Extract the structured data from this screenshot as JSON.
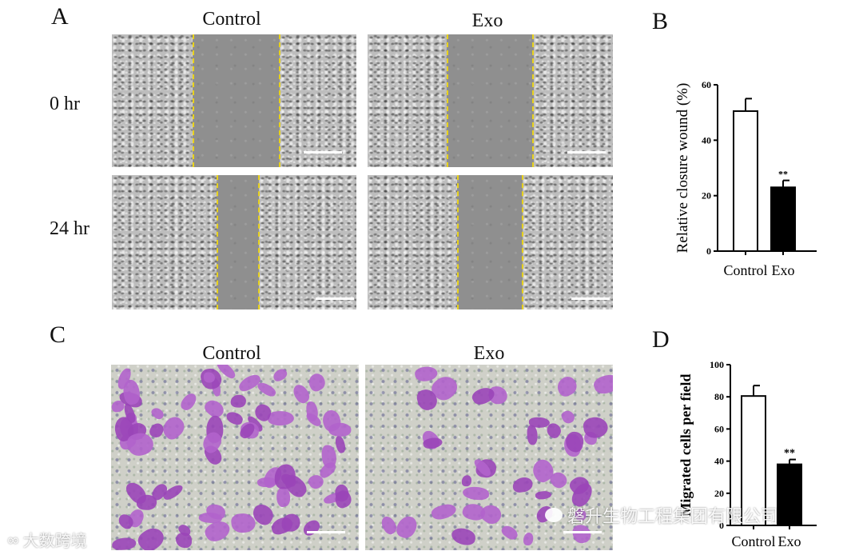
{
  "panels": {
    "a": {
      "letter": "A",
      "columns": [
        "Control",
        "Exo"
      ],
      "rows": [
        "0 hr",
        "24 hr"
      ]
    },
    "b": {
      "letter": "B"
    },
    "c": {
      "letter": "C",
      "columns": [
        "Control",
        "Exo"
      ]
    },
    "d": {
      "letter": "D"
    }
  },
  "chart_data": [
    {
      "type": "bar",
      "panel": "B",
      "categories": [
        "Control",
        "Exo"
      ],
      "values": [
        50.5,
        23
      ],
      "errors": [
        4.5,
        2.5
      ],
      "bar_colors": [
        "#ffffff",
        "#000000"
      ],
      "ylabel": "Relative closure wound (%)",
      "ylim": [
        0,
        60
      ],
      "yticks": [
        0,
        20,
        40,
        60
      ],
      "annotations": [
        {
          "category": "Exo",
          "text": "**"
        }
      ]
    },
    {
      "type": "bar",
      "panel": "D",
      "categories": [
        "Control",
        "Exo"
      ],
      "values": [
        80.5,
        38
      ],
      "errors": [
        6.5,
        3
      ],
      "bar_colors": [
        "#ffffff",
        "#000000"
      ],
      "ylabel": "Migrated cells per field",
      "ylim": [
        0,
        100
      ],
      "yticks": [
        0,
        20,
        40,
        60,
        80,
        100
      ],
      "annotations": [
        {
          "category": "Exo",
          "text": "**"
        }
      ]
    }
  ],
  "watermarks": {
    "left": "大数跨境",
    "right": "磐升生物工程集团有限公司"
  }
}
